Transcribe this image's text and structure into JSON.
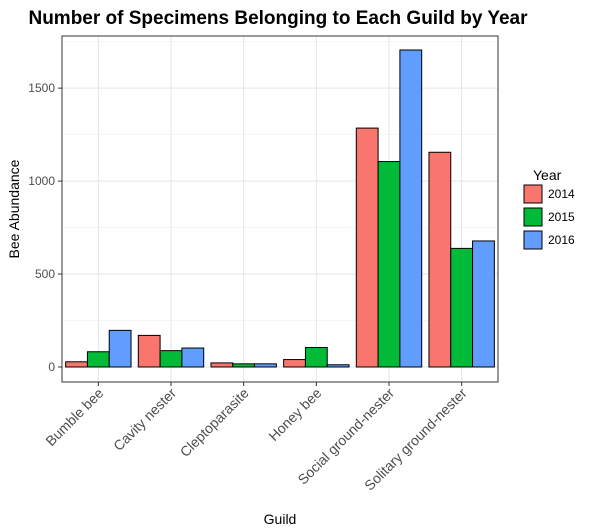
{
  "chart_data": {
    "type": "bar",
    "title": "Number of Specimens Belonging to Each Guild by Year",
    "xlabel": "Guild",
    "ylabel": "Bee Abundance",
    "ylim": [
      0,
      1800
    ],
    "yticks": [
      0,
      500,
      1000,
      1500
    ],
    "grid": true,
    "legend": {
      "title": "Year",
      "placement": "right"
    },
    "categories": [
      "Bumble bee",
      "Cavity nester",
      "Cleptoparasite",
      "Honey bee",
      "Social ground-nester",
      "Solitary ground-nester"
    ],
    "series": [
      {
        "name": "2014",
        "color": "#f8766d",
        "values": [
          28,
          170,
          22,
          40,
          1285,
          1155
        ]
      },
      {
        "name": "2015",
        "color": "#00ba38",
        "values": [
          82,
          88,
          17,
          105,
          1105,
          638
        ]
      },
      {
        "name": "2016",
        "color": "#619cff",
        "values": [
          197,
          102,
          17,
          12,
          1705,
          678
        ]
      }
    ]
  }
}
